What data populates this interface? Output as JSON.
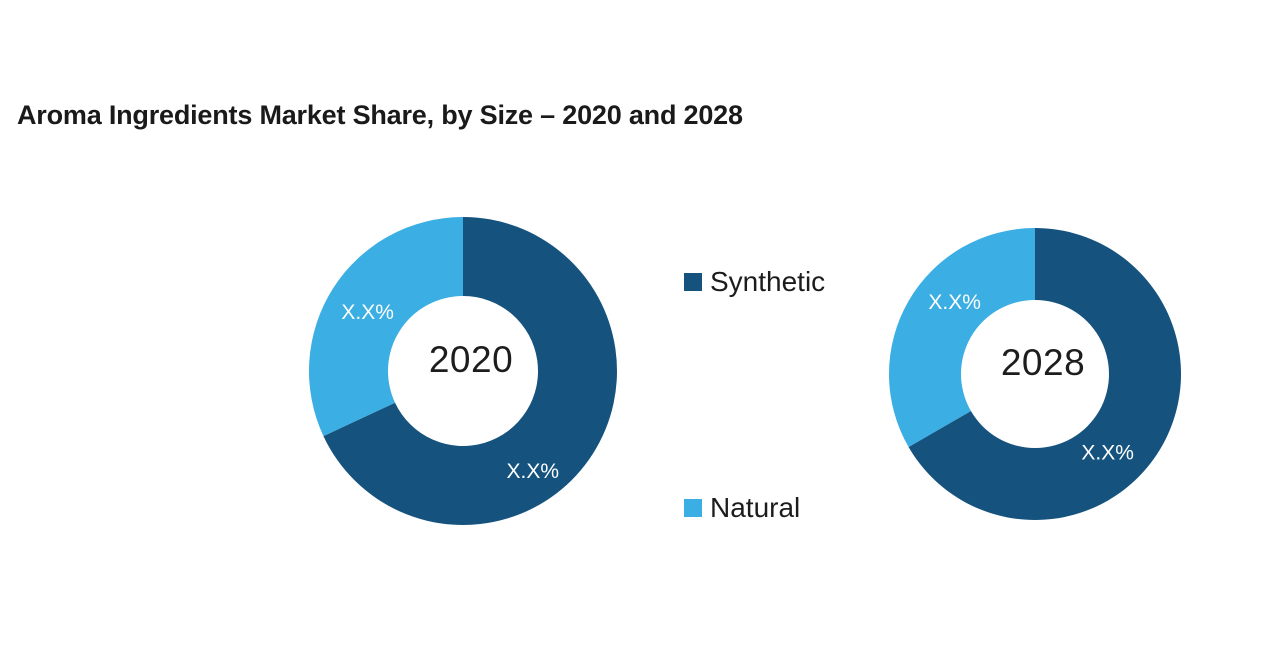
{
  "page": {
    "background": "#ffffff"
  },
  "title": {
    "text": "Aroma Ingredients Market Share, by Size – 2020 and 2028"
  },
  "legend": {
    "items": [
      {
        "label": "Synthetic",
        "color": "#15537E"
      },
      {
        "label": "Natural",
        "color": "#3BAEE3"
      }
    ]
  },
  "chart_data": {
    "type": "pie",
    "subtype": "donut",
    "title": "Aroma Ingredients Market Share, by Size – 2020 and 2028",
    "legend_position": "center between the two donuts",
    "series_names": [
      "Synthetic",
      "Natural"
    ],
    "colors": {
      "synthetic": "#15537E",
      "natural": "#3BAEE3"
    },
    "charts": [
      {
        "center_label": "2020",
        "slices": [
          {
            "name": "Synthetic",
            "label": "X.X%",
            "approx_value_pct": 68.1,
            "color": "#15537E",
            "start_angle_deg": 0,
            "end_angle_deg": 245,
            "label_angle_deg": 145,
            "label_radius_frac": 0.79
          },
          {
            "name": "Natural",
            "label": "X.X%",
            "approx_value_pct": 31.9,
            "color": "#3BAEE3",
            "start_angle_deg": 245,
            "end_angle_deg": 360,
            "label_angle_deg": 302,
            "label_radius_frac": 0.73
          }
        ]
      },
      {
        "center_label": "2028",
        "slices": [
          {
            "name": "Synthetic",
            "label": "X.X%",
            "approx_value_pct": 66.7,
            "color": "#15537E",
            "start_angle_deg": 0,
            "end_angle_deg": 240,
            "label_angle_deg": 137,
            "label_radius_frac": 0.73
          },
          {
            "name": "Natural",
            "label": "X.X%",
            "approx_value_pct": 33.3,
            "color": "#3BAEE3",
            "start_angle_deg": 240,
            "end_angle_deg": 360,
            "label_angle_deg": 312,
            "label_radius_frac": 0.74
          }
        ]
      }
    ]
  }
}
